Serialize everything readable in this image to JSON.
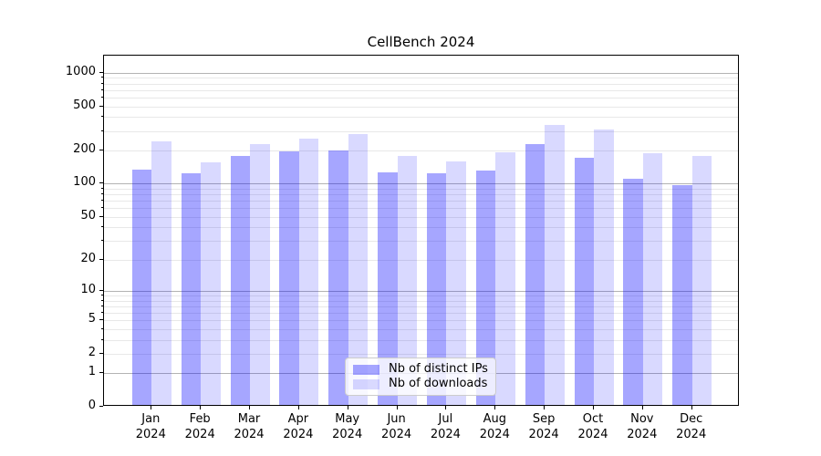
{
  "title": "CellBench 2024",
  "legend": {
    "items": [
      {
        "label": "Nb of distinct IPs",
        "color": "rgba(0,0,255,0.35)"
      },
      {
        "label": "Nb of downloads",
        "color": "rgba(0,0,255,0.15)"
      }
    ]
  },
  "chart_data": {
    "type": "bar",
    "title": "CellBench 2024",
    "categories": [
      "Jan 2024",
      "Feb 2024",
      "Mar 2024",
      "Apr 2024",
      "May 2024",
      "Jun 2024",
      "Jul 2024",
      "Aug 2024",
      "Sep 2024",
      "Oct 2024",
      "Nov 2024",
      "Dec 2024"
    ],
    "series": [
      {
        "name": "Nb of distinct IPs",
        "color": "rgba(0,0,255,0.35)",
        "values": [
          128,
          119,
          172,
          188,
          193,
          122,
          120,
          126,
          220,
          165,
          107,
          93
        ]
      },
      {
        "name": "Nb of downloads",
        "color": "rgba(0,0,255,0.15)",
        "values": [
          232,
          149,
          220,
          246,
          272,
          172,
          152,
          185,
          325,
          300,
          182,
          172
        ]
      }
    ],
    "xlabel": "",
    "ylabel": "",
    "yscale": "log1p",
    "yticks": [
      0,
      1,
      2,
      5,
      10,
      20,
      50,
      100,
      200,
      500,
      1000
    ],
    "ylim": [
      0,
      1415
    ],
    "grid": "horizontal major and minor gridlines",
    "legend_position": "lower center"
  }
}
